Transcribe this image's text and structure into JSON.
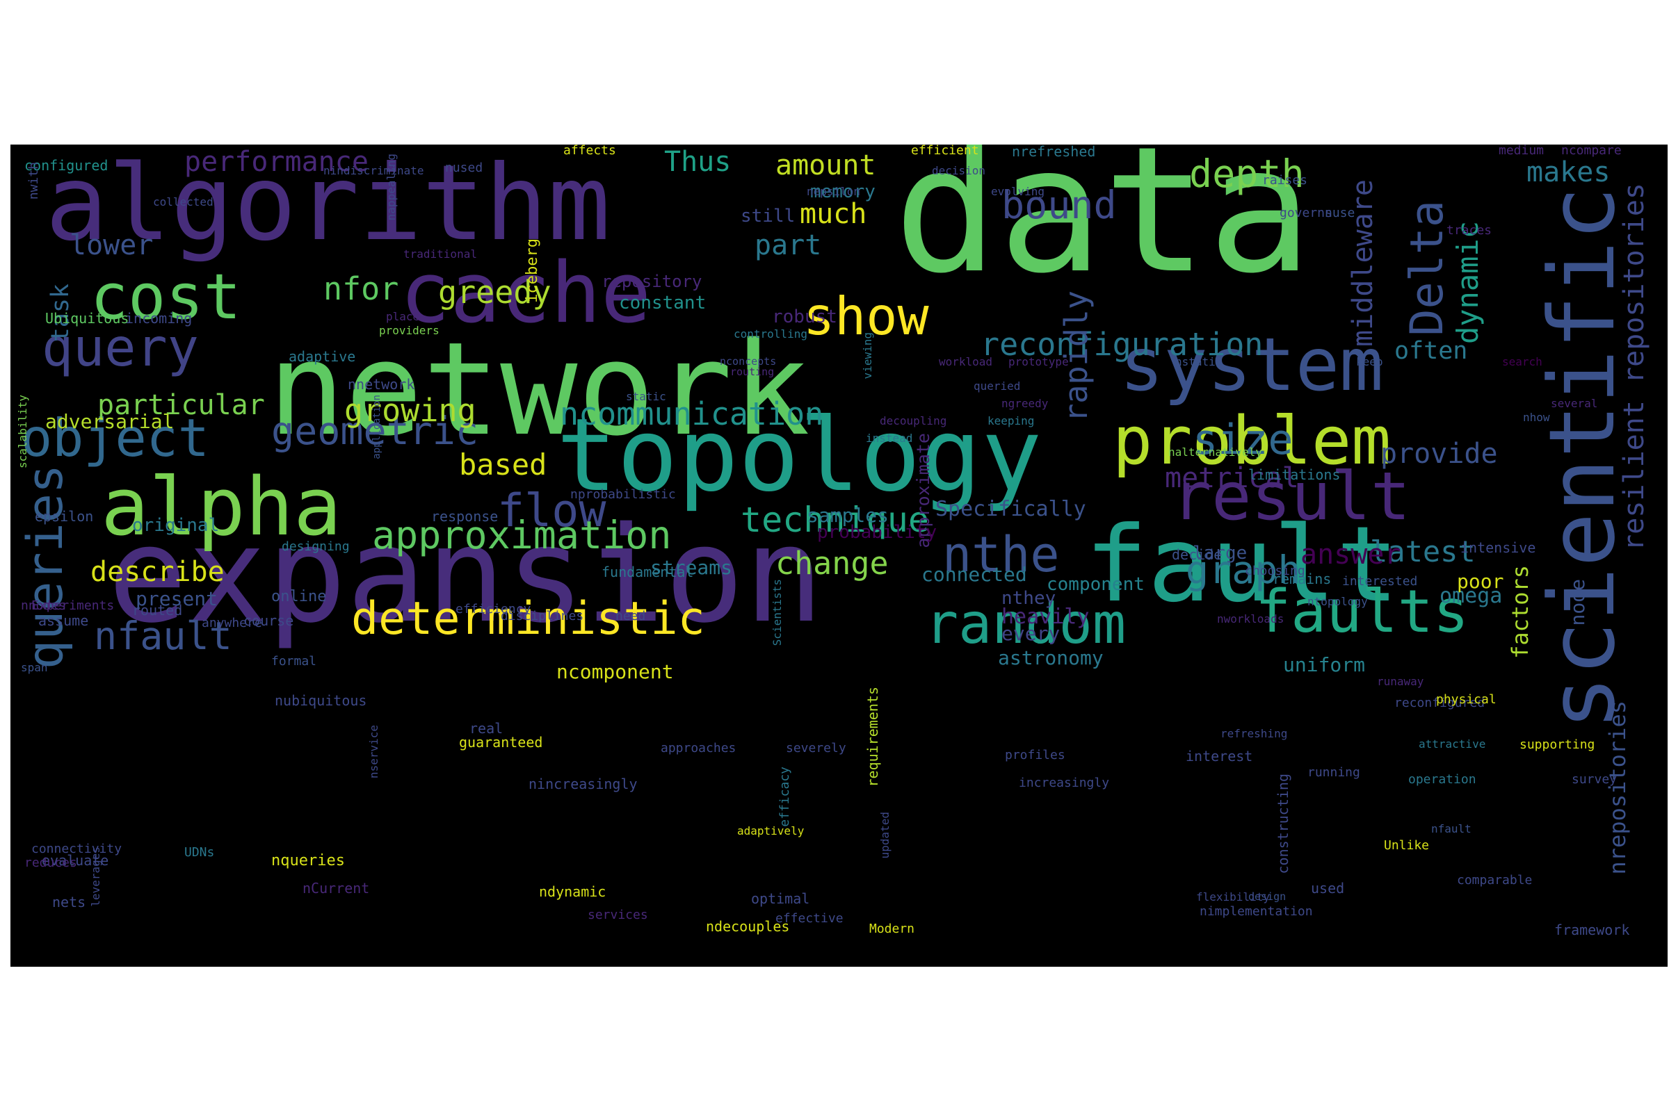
{
  "figure": {
    "background": "#000000",
    "colormap": "viridis",
    "words": [
      {
        "text": "data",
        "color": "#5ec962"
      },
      {
        "text": "network",
        "color": "#5ec962"
      },
      {
        "text": "expansion",
        "color": "#472d7b"
      },
      {
        "text": "algorithm",
        "color": "#472d7b"
      },
      {
        "text": "topology",
        "color": "#1f9e89"
      },
      {
        "text": "scientific",
        "color": "#3b528b"
      },
      {
        "text": "fault",
        "color": "#1f9e89"
      },
      {
        "text": "cache",
        "color": "#482878"
      },
      {
        "text": "system",
        "color": "#3b528b"
      },
      {
        "text": "alpha",
        "color": "#7ad151"
      },
      {
        "text": "problem",
        "color": "#b5de2b"
      },
      {
        "text": "cost",
        "color": "#5ec962"
      },
      {
        "text": "result",
        "color": "#482878"
      },
      {
        "text": "faults",
        "color": "#22a884"
      },
      {
        "text": "random",
        "color": "#1f9e89"
      },
      {
        "text": "deterministic",
        "color": "#fde725"
      },
      {
        "text": "object",
        "color": "#31688e"
      },
      {
        "text": "query",
        "color": "#414487"
      },
      {
        "text": "queries",
        "color": "#35608d"
      },
      {
        "text": "show",
        "color": "#fde725"
      },
      {
        "text": "nthe",
        "color": "#3b528b"
      },
      {
        "text": "flow",
        "color": "#3e4989"
      },
      {
        "text": "Delta",
        "color": "#3b528b"
      },
      {
        "text": "approximation",
        "color": "#5ec962"
      },
      {
        "text": "size",
        "color": "#31688e"
      },
      {
        "text": "nfault",
        "color": "#3b528b"
      },
      {
        "text": "graph",
        "color": "#2a788e"
      },
      {
        "text": "geometric",
        "color": "#3b528b"
      },
      {
        "text": "technique",
        "color": "#22a884"
      },
      {
        "text": "reconfiguration",
        "color": "#2a788e"
      },
      {
        "text": "bound",
        "color": "#3e4989"
      },
      {
        "text": "depth",
        "color": "#7ad151"
      },
      {
        "text": "resilient repositories",
        "color": "#3e4989"
      },
      {
        "text": "ncommunication",
        "color": "#21918c"
      },
      {
        "text": "greedy",
        "color": "#addc30"
      },
      {
        "text": "growing",
        "color": "#addc30"
      },
      {
        "text": "particular",
        "color": "#7ad151"
      },
      {
        "text": "nfor",
        "color": "#5ec962"
      },
      {
        "text": "describe",
        "color": "#d8e219"
      },
      {
        "text": "change",
        "color": "#84d44b"
      },
      {
        "text": "latest",
        "color": "#2a788e"
      },
      {
        "text": "provide",
        "color": "#3b528b"
      },
      {
        "text": "metrical",
        "color": "#482878"
      },
      {
        "text": "answer",
        "color": "#440154"
      },
      {
        "text": "based",
        "color": "#d8e219"
      },
      {
        "text": "performance",
        "color": "#482878"
      },
      {
        "text": "Thus",
        "color": "#1fa187"
      },
      {
        "text": "amount",
        "color": "#c2df23"
      },
      {
        "text": "makes",
        "color": "#2a788e"
      },
      {
        "text": "dynamic",
        "color": "#1f9e89"
      },
      {
        "text": "middleware",
        "color": "#3e4989"
      },
      {
        "text": "rapidly",
        "color": "#3b528b"
      },
      {
        "text": "often",
        "color": "#2a788e"
      },
      {
        "text": "lower",
        "color": "#3b528b"
      },
      {
        "text": "task",
        "color": "#31688e"
      },
      {
        "text": "much",
        "color": "#d8e219"
      },
      {
        "text": "part",
        "color": "#2a788e"
      },
      {
        "text": "nrepositories",
        "color": "#3b528b"
      },
      {
        "text": "factors",
        "color": "#addc30"
      },
      {
        "text": "heavily",
        "color": "#482878"
      },
      {
        "text": "astronomy",
        "color": "#2a788e"
      },
      {
        "text": "uniform",
        "color": "#26828e"
      },
      {
        "text": "every",
        "color": "#414487"
      },
      {
        "text": "omega",
        "color": "#2a788e"
      },
      {
        "text": "node",
        "color": "#3b528b"
      },
      {
        "text": "poor",
        "color": "#d8e219"
      },
      {
        "text": "nthey",
        "color": "#3e4989"
      },
      {
        "text": "connected",
        "color": "#2a788e"
      },
      {
        "text": "component",
        "color": "#26828e"
      },
      {
        "text": "Specifically",
        "color": "#3b528b"
      },
      {
        "text": "approximate",
        "color": "#482878"
      },
      {
        "text": "streams",
        "color": "#2a788e"
      },
      {
        "text": "samples",
        "color": "#2a788e"
      },
      {
        "text": "probability",
        "color": "#440154"
      },
      {
        "text": "ncomponent",
        "color": "#d8e219"
      },
      {
        "text": "adversarial",
        "color": "#b5de2b"
      },
      {
        "text": "original",
        "color": "#2a788e"
      },
      {
        "text": "present",
        "color": "#3b528b"
      },
      {
        "text": "large",
        "color": "#3b528b"
      },
      {
        "text": "nfault",
        "color": "#3b528b"
      },
      {
        "text": "memory",
        "color": "#2a788e"
      },
      {
        "text": "robust",
        "color": "#482878"
      },
      {
        "text": "constant",
        "color": "#21918c"
      },
      {
        "text": "repository",
        "color": "#482878"
      },
      {
        "text": "still",
        "color": "#3e4989"
      },
      {
        "text": "iceberg",
        "color": "#d8e219"
      },
      {
        "text": "configured",
        "color": "#21918c"
      },
      {
        "text": "nused",
        "color": "#3e4989"
      },
      {
        "text": "affects",
        "color": "#d8e219"
      },
      {
        "text": "efficient",
        "color": "#d8e219"
      },
      {
        "text": "nrefreshed",
        "color": "#2a788e"
      },
      {
        "text": "nindiscriminate",
        "color": "#3e4989"
      },
      {
        "text": "decision",
        "color": "#3e4989"
      },
      {
        "text": "medium",
        "color": "#482878"
      },
      {
        "text": "ncompare",
        "color": "#482878"
      },
      {
        "text": "raises",
        "color": "#3b528b"
      },
      {
        "text": "nuse",
        "color": "#3b528b"
      },
      {
        "text": "nwith",
        "color": "#3e4989"
      },
      {
        "text": "collected",
        "color": "#3e4989"
      },
      {
        "text": "nepsilon",
        "color": "#3e4989"
      },
      {
        "text": "evolving",
        "color": "#3e4989"
      },
      {
        "text": "governs",
        "color": "#3e4989"
      },
      {
        "text": "traces",
        "color": "#482878"
      },
      {
        "text": "traditional",
        "color": "#482878"
      },
      {
        "text": "nappealing",
        "color": "#3e4989"
      },
      {
        "text": "Ubiquitous",
        "color": "#5ec962"
      },
      {
        "text": "incoming",
        "color": "#3e4989"
      },
      {
        "text": "place",
        "color": "#482878"
      },
      {
        "text": "providers",
        "color": "#7ad151"
      },
      {
        "text": "adaptive",
        "color": "#2a788e"
      },
      {
        "text": "controlling",
        "color": "#2a788e"
      },
      {
        "text": "viewing",
        "color": "#2a788e"
      },
      {
        "text": "nnetwork",
        "color": "#3e4989"
      },
      {
        "text": "nconcepts",
        "color": "#3e4989"
      },
      {
        "text": "routing",
        "color": "#482878"
      },
      {
        "text": "workload",
        "color": "#482878"
      },
      {
        "text": "prototype",
        "color": "#482878"
      },
      {
        "text": "nstatic",
        "color": "#3b528b"
      },
      {
        "text": "keep",
        "color": "#3b528b"
      },
      {
        "text": "search",
        "color": "#440154"
      },
      {
        "text": "several",
        "color": "#482878"
      },
      {
        "text": "static",
        "color": "#3b528b"
      },
      {
        "text": "queried",
        "color": "#3e4989"
      },
      {
        "text": "ngreedy",
        "color": "#482878"
      },
      {
        "text": "keeping",
        "color": "#2a788e"
      },
      {
        "text": "instead",
        "color": "#2a788e"
      },
      {
        "text": "decoupling",
        "color": "#482878"
      },
      {
        "text": "nalternatively",
        "color": "#7ad151"
      },
      {
        "text": "nhow",
        "color": "#3b528b"
      },
      {
        "text": "limitations",
        "color": "#2a788e"
      },
      {
        "text": "scalability",
        "color": "#7ad151"
      },
      {
        "text": "application",
        "color": "#3b528b"
      },
      {
        "text": "nprobabilistic",
        "color": "#3e4989"
      },
      {
        "text": "epsilon",
        "color": "#3b528b"
      },
      {
        "text": "response",
        "color": "#3b528b"
      },
      {
        "text": "designing",
        "color": "#2a788e"
      },
      {
        "text": "fundamental",
        "color": "#2a788e"
      },
      {
        "text": "decide",
        "color": "#3b528b"
      },
      {
        "text": "intensive",
        "color": "#3e4989"
      },
      {
        "text": "remains",
        "color": "#2a788e"
      },
      {
        "text": "Experiments",
        "color": "#482878"
      },
      {
        "text": "routed",
        "color": "#3e4989"
      },
      {
        "text": "efficiency",
        "color": "#3e4989"
      },
      {
        "text": "choosing",
        "color": "#3e4989"
      },
      {
        "text": "interested",
        "color": "#3b528b"
      },
      {
        "text": "nnodes",
        "color": "#482878"
      },
      {
        "text": "anywhere",
        "color": "#3e4989"
      },
      {
        "text": "course",
        "color": "#3e4989"
      },
      {
        "text": "Scientists",
        "color": "#2a788e"
      },
      {
        "text": "assume",
        "color": "#3e4989"
      },
      {
        "text": "disciplines",
        "color": "#3e4989"
      },
      {
        "text": "need",
        "color": "#3e4989"
      },
      {
        "text": "nworkloads",
        "color": "#482878"
      },
      {
        "text": "ntopology",
        "color": "#3b528b"
      },
      {
        "text": "refreshing",
        "color": "#3e4989"
      },
      {
        "text": "design",
        "color": "#3b528b"
      },
      {
        "text": "runaway",
        "color": "#482878"
      },
      {
        "text": "span",
        "color": "#3b528b"
      },
      {
        "text": "formal",
        "color": "#3b528b"
      },
      {
        "text": "online",
        "color": "#3b528b"
      },
      {
        "text": "requirements",
        "color": "#b5de2b"
      },
      {
        "text": "reconfigured",
        "color": "#3e4989"
      },
      {
        "text": "physical",
        "color": "#d8e219"
      },
      {
        "text": "nubiquitous",
        "color": "#3e4989"
      },
      {
        "text": "real",
        "color": "#3e4989"
      },
      {
        "text": "approaches",
        "color": "#3e4989"
      },
      {
        "text": "severely",
        "color": "#3e4989"
      },
      {
        "text": "profiles",
        "color": "#3e4989"
      },
      {
        "text": "supporting",
        "color": "#d8e219"
      },
      {
        "text": "leverages",
        "color": "#3e4989"
      },
      {
        "text": "efficacy",
        "color": "#2a788e"
      },
      {
        "text": "survey",
        "color": "#3e4989"
      },
      {
        "text": "evaluate",
        "color": "#3e4989"
      },
      {
        "text": "guaranteed",
        "color": "#d8e219"
      },
      {
        "text": "increasingly",
        "color": "#3e4989"
      },
      {
        "text": "nincreasingly",
        "color": "#3e4989"
      },
      {
        "text": "nservice",
        "color": "#3e4989"
      },
      {
        "text": "constructing",
        "color": "#3e4989"
      },
      {
        "text": "operation",
        "color": "#2a788e"
      },
      {
        "text": "interest",
        "color": "#3e4989"
      },
      {
        "text": "attractive",
        "color": "#2a788e"
      },
      {
        "text": "running",
        "color": "#3e4989"
      },
      {
        "text": "reduces",
        "color": "#482878"
      },
      {
        "text": "updated",
        "color": "#3e4989"
      },
      {
        "text": "adaptively",
        "color": "#d8e219"
      },
      {
        "text": "Unlike",
        "color": "#d8e219"
      },
      {
        "text": "connectivity",
        "color": "#3e4989"
      },
      {
        "text": "UDNs",
        "color": "#2a788e"
      },
      {
        "text": "nqueries",
        "color": "#d8e219"
      },
      {
        "text": "nCurrent",
        "color": "#482878"
      },
      {
        "text": "ndynamic",
        "color": "#d8e219"
      },
      {
        "text": "services",
        "color": "#482878"
      },
      {
        "text": "effective",
        "color": "#3e4989"
      },
      {
        "text": "ndecouples",
        "color": "#d8e219"
      },
      {
        "text": "optimal",
        "color": "#3e4989"
      },
      {
        "text": "Modern",
        "color": "#d8e219"
      },
      {
        "text": "nimplementation",
        "color": "#3e4989"
      },
      {
        "text": "flexibility",
        "color": "#3e4989"
      },
      {
        "text": "framework",
        "color": "#3e4989"
      },
      {
        "text": "used",
        "color": "#3e4989"
      },
      {
        "text": "comparable",
        "color": "#3e4989"
      },
      {
        "text": "nets",
        "color": "#3e4989"
      }
    ]
  }
}
